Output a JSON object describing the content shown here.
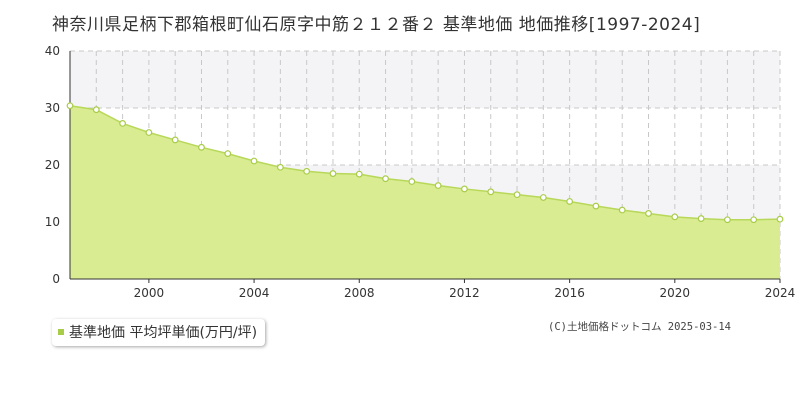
{
  "title": "神奈川県足柄下郡箱根町仙石原字中筋２１２番２ 基準地価 地価推移[1997-2024]",
  "legend_label": "基準地価 平均坪単価(万円/坪)",
  "copyright": "(C)土地価格ドットコム 2025-03-14",
  "colors": {
    "fill": "#d9ec91",
    "line": "#b8d85a",
    "marker_fill": "#ffffff",
    "marker_stroke": "#a8cc48",
    "grid": "#c8c8c8",
    "band": "#f4f4f6",
    "legend_swatch": "#a8cc48"
  },
  "chart_data": {
    "type": "area",
    "title": "神奈川県足柄下郡箱根町仙石原字中筋２１２番２ 基準地価 地価推移[1997-2024]",
    "xlabel": "",
    "ylabel": "",
    "xlim": [
      1997,
      2024
    ],
    "ylim": [
      0,
      40
    ],
    "x_ticks": [
      2000,
      2004,
      2008,
      2012,
      2016,
      2020,
      2024
    ],
    "y_ticks": [
      0,
      10,
      20,
      30,
      40
    ],
    "grid": true,
    "legend_position": "bottom-left",
    "series": [
      {
        "name": "基準地価 平均坪単価(万円/坪)",
        "x": [
          1997,
          1998,
          1999,
          2000,
          2001,
          2002,
          2003,
          2004,
          2005,
          2006,
          2007,
          2008,
          2009,
          2010,
          2011,
          2012,
          2013,
          2014,
          2015,
          2016,
          2017,
          2018,
          2019,
          2020,
          2021,
          2022,
          2023,
          2024
        ],
        "values": [
          30.4,
          29.7,
          27.3,
          25.7,
          24.4,
          23.1,
          22.0,
          20.7,
          19.6,
          18.9,
          18.5,
          18.4,
          17.6,
          17.1,
          16.4,
          15.8,
          15.3,
          14.8,
          14.3,
          13.6,
          12.8,
          12.1,
          11.5,
          10.9,
          10.6,
          10.4,
          10.4,
          10.5
        ]
      }
    ]
  }
}
